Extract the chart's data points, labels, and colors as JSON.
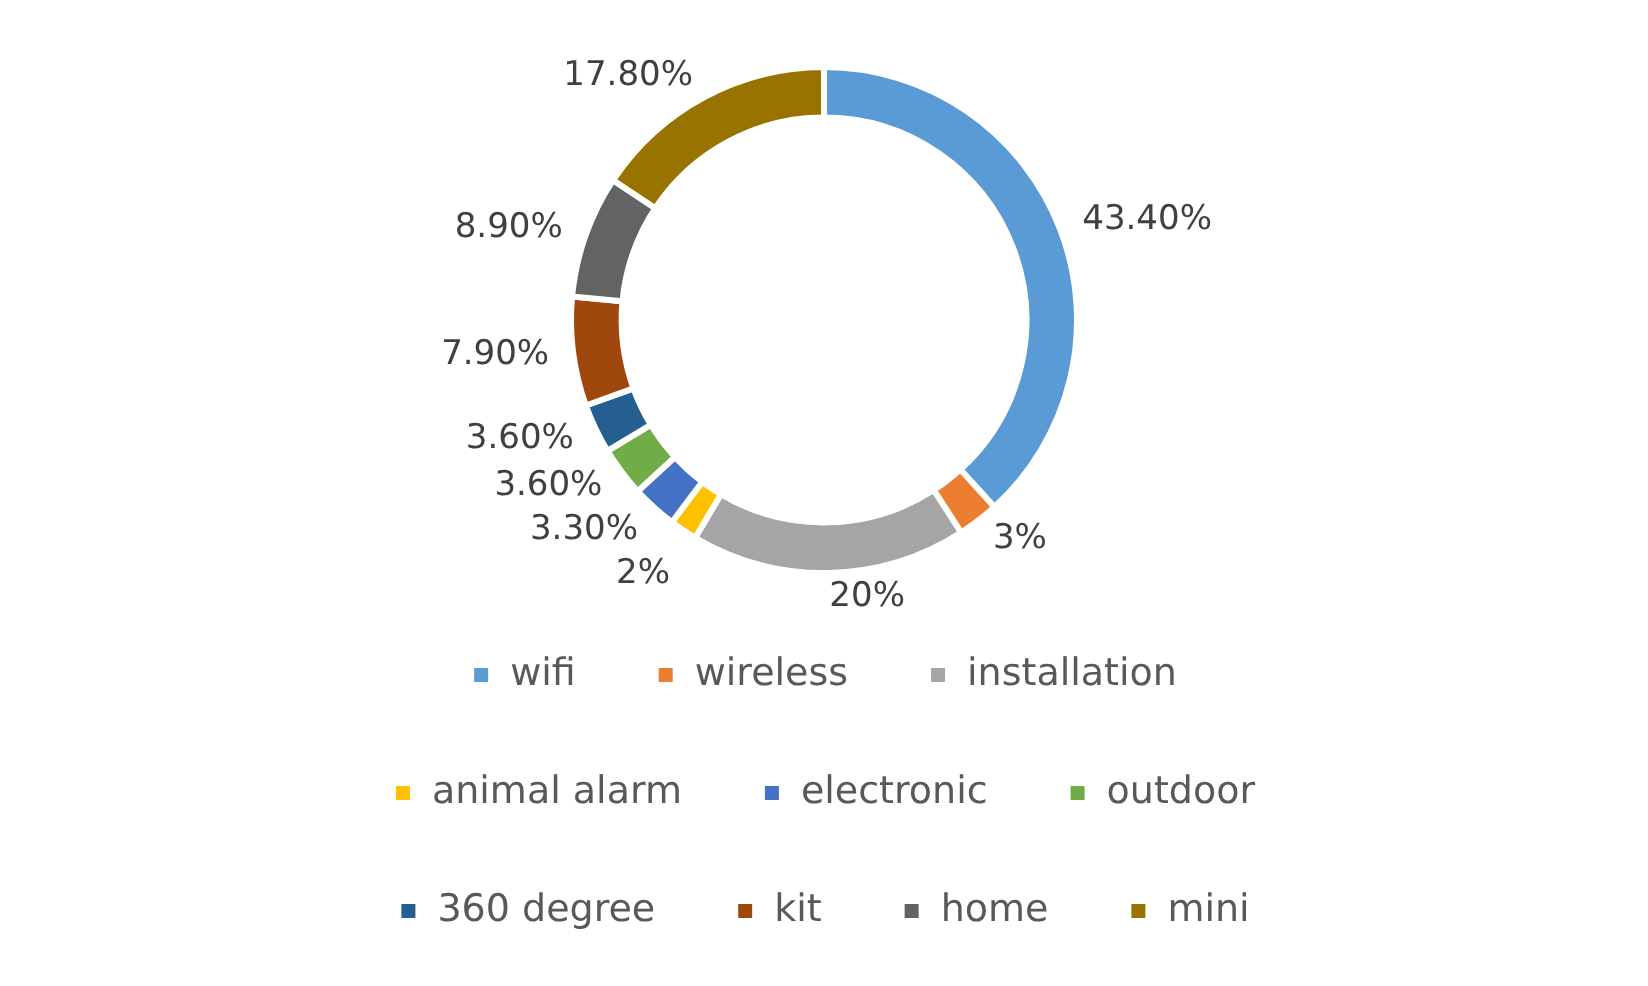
{
  "chart_data": {
    "type": "donut",
    "categories": [
      "wifi",
      "wireless",
      "installation",
      "animal alarm",
      "electronic",
      "outdoor",
      "360 degree",
      "kit",
      "home",
      "mini"
    ],
    "values": [
      43.4,
      3,
      20,
      2,
      3.3,
      3.6,
      3.6,
      7.9,
      8.9,
      17.8
    ],
    "value_labels": [
      "43.40%",
      "3%",
      "20%",
      "2%",
      "3.30%",
      "3.60%",
      "3.60%",
      "7.90%",
      "8.90%",
      "17.80%"
    ],
    "colors": [
      "#5b9bd5",
      "#ed7d31",
      "#a5a5a5",
      "#ffc000",
      "#4472c4",
      "#70ad47",
      "#255e91",
      "#9e480e",
      "#636363",
      "#997300"
    ],
    "legend": "bottom"
  }
}
